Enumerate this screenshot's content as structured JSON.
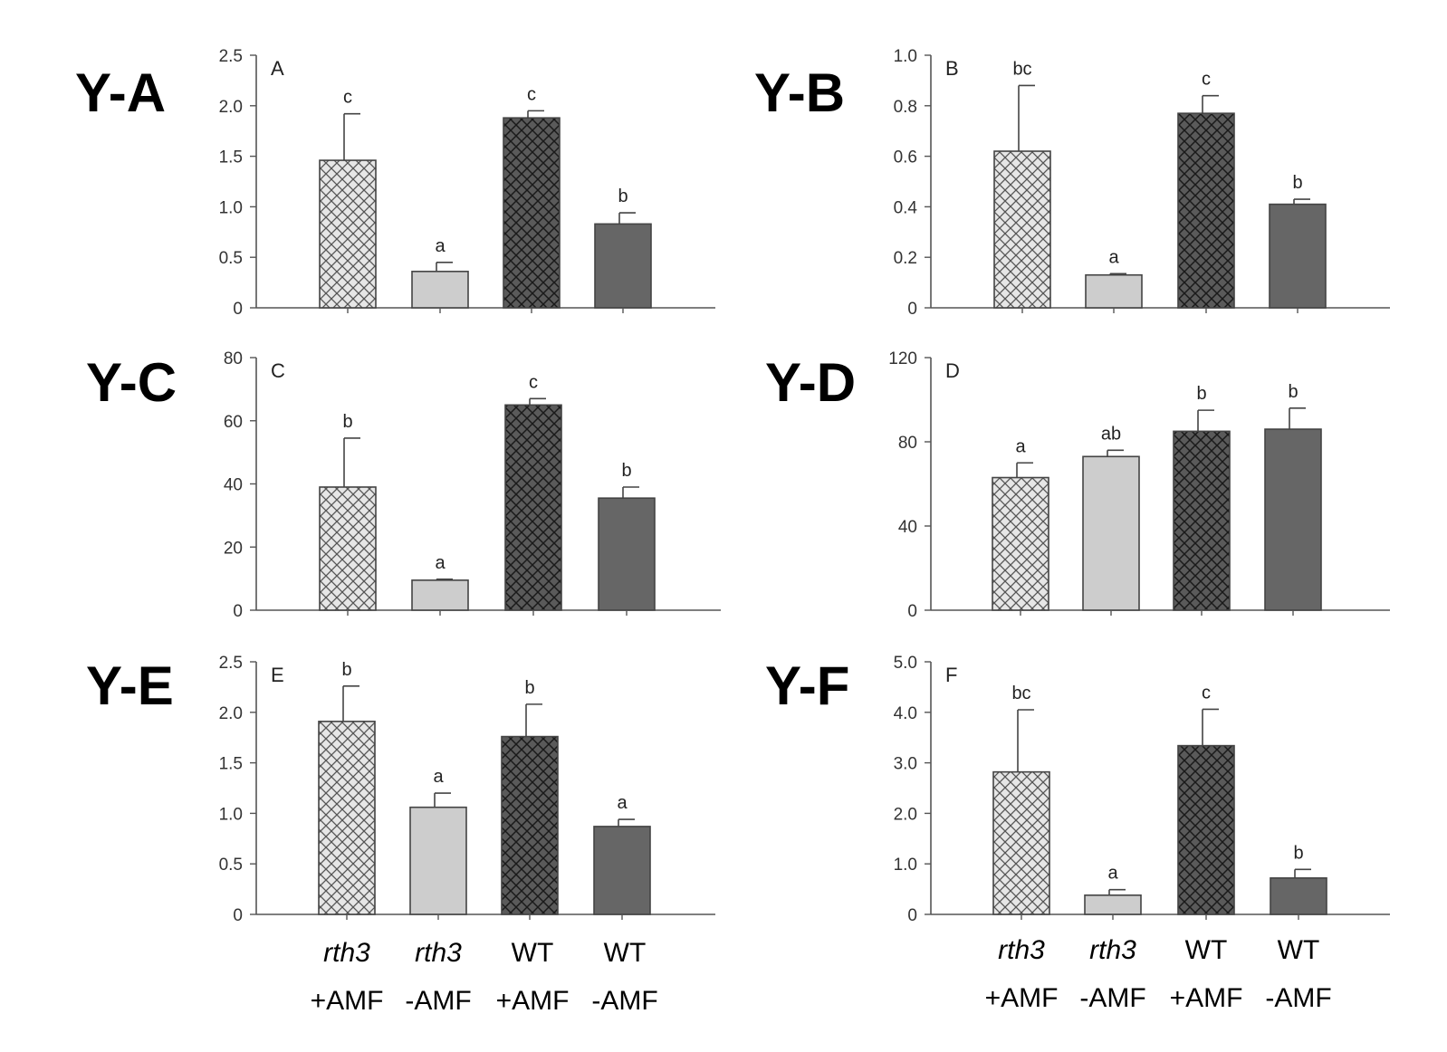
{
  "chart_data": [
    {
      "type": "bar",
      "figure_label": "Y-A",
      "panel_letter": "A",
      "categories": [
        "rth3 +AMF",
        "rth3 -AMF",
        "WT +AMF",
        "WT -AMF"
      ],
      "values": [
        1.46,
        0.36,
        1.88,
        0.83
      ],
      "errors": [
        0.46,
        0.09,
        0.07,
        0.11
      ],
      "significance": [
        "c",
        "a",
        "c",
        "b"
      ],
      "ylim": [
        0,
        2.5
      ],
      "yticks": [
        "0",
        "0.5",
        "1.0",
        "1.5",
        "2.0",
        "2.5"
      ],
      "ytick_values": [
        0,
        0.5,
        1.0,
        1.5,
        2.0,
        2.5
      ]
    },
    {
      "type": "bar",
      "figure_label": "Y-B",
      "panel_letter": "B",
      "categories": [
        "rth3 +AMF",
        "rth3 -AMF",
        "WT +AMF",
        "WT -AMF"
      ],
      "values": [
        0.62,
        0.13,
        0.77,
        0.41
      ],
      "errors": [
        0.26,
        0.005,
        0.07,
        0.02
      ],
      "significance": [
        "bc",
        "a",
        "c",
        "b"
      ],
      "ylim": [
        0,
        1.0
      ],
      "yticks": [
        "0",
        "0.2",
        "0.4",
        "0.6",
        "0.8",
        "1.0"
      ],
      "ytick_values": [
        0,
        0.2,
        0.4,
        0.6,
        0.8,
        1.0
      ]
    },
    {
      "type": "bar",
      "figure_label": "Y-C",
      "panel_letter": "C",
      "categories": [
        "rth3 +AMF",
        "rth3 -AMF",
        "WT +AMF",
        "WT -AMF"
      ],
      "values": [
        39,
        9.5,
        65,
        35.5
      ],
      "errors": [
        15.5,
        0.3,
        2,
        3.5
      ],
      "significance": [
        "b",
        "a",
        "c",
        "b"
      ],
      "ylim": [
        0,
        80
      ],
      "yticks": [
        "0",
        "20",
        "40",
        "60",
        "80"
      ],
      "ytick_values": [
        0,
        20,
        40,
        60,
        80
      ]
    },
    {
      "type": "bar",
      "figure_label": "Y-D",
      "panel_letter": "D",
      "categories": [
        "rth3 +AMF",
        "rth3 -AMF",
        "WT +AMF",
        "WT -AMF"
      ],
      "values": [
        63,
        73,
        85,
        86
      ],
      "errors": [
        7,
        3,
        10,
        10
      ],
      "significance": [
        "a",
        "ab",
        "b",
        "b"
      ],
      "ylim": [
        0,
        120
      ],
      "yticks": [
        "0",
        "40",
        "80",
        "120"
      ],
      "ytick_values": [
        0,
        40,
        80,
        120
      ]
    },
    {
      "type": "bar",
      "figure_label": "Y-E",
      "panel_letter": "E",
      "categories": [
        "rth3 +AMF",
        "rth3 -AMF",
        "WT +AMF",
        "WT -AMF"
      ],
      "values": [
        1.91,
        1.06,
        1.76,
        0.87
      ],
      "errors": [
        0.35,
        0.14,
        0.32,
        0.07
      ],
      "significance": [
        "b",
        "a",
        "b",
        "a"
      ],
      "ylim": [
        0,
        2.5
      ],
      "yticks": [
        "0",
        "0.5",
        "1.0",
        "1.5",
        "2.0",
        "2.5"
      ],
      "ytick_values": [
        0,
        0.5,
        1.0,
        1.5,
        2.0,
        2.5
      ]
    },
    {
      "type": "bar",
      "figure_label": "Y-F",
      "panel_letter": "F",
      "categories": [
        "rth3 +AMF",
        "rth3 -AMF",
        "WT +AMF",
        "WT -AMF"
      ],
      "values": [
        2.82,
        0.38,
        3.34,
        0.72
      ],
      "errors": [
        1.23,
        0.11,
        0.72,
        0.17
      ],
      "significance": [
        "bc",
        "a",
        "c",
        "b"
      ],
      "ylim": [
        0,
        5.0
      ],
      "yticks": [
        "0",
        "1.0",
        "2.0",
        "3.0",
        "4.0",
        "5.0"
      ],
      "ytick_values": [
        0,
        1.0,
        2.0,
        3.0,
        4.0,
        5.0
      ]
    }
  ],
  "category_labels": [
    {
      "line1": "rth3",
      "line1_italic": true,
      "line2": "+AMF"
    },
    {
      "line1": "rth3",
      "line1_italic": true,
      "line2": "-AMF"
    },
    {
      "line1": "WT",
      "line1_italic": false,
      "line2": "+AMF"
    },
    {
      "line1": "WT",
      "line1_italic": false,
      "line2": "-AMF"
    }
  ],
  "colors": {
    "rth3_plus_amf_fill": "#e6e6e6",
    "rth3_plus_amf_hatch": "#555555",
    "rth3_minus_amf_fill": "#cdcdcd",
    "wt_plus_amf_fill": "#5a5a5a",
    "wt_plus_amf_hatch": "#1a1a1a",
    "wt_minus_amf_fill": "#666666",
    "axis": "#555555"
  }
}
